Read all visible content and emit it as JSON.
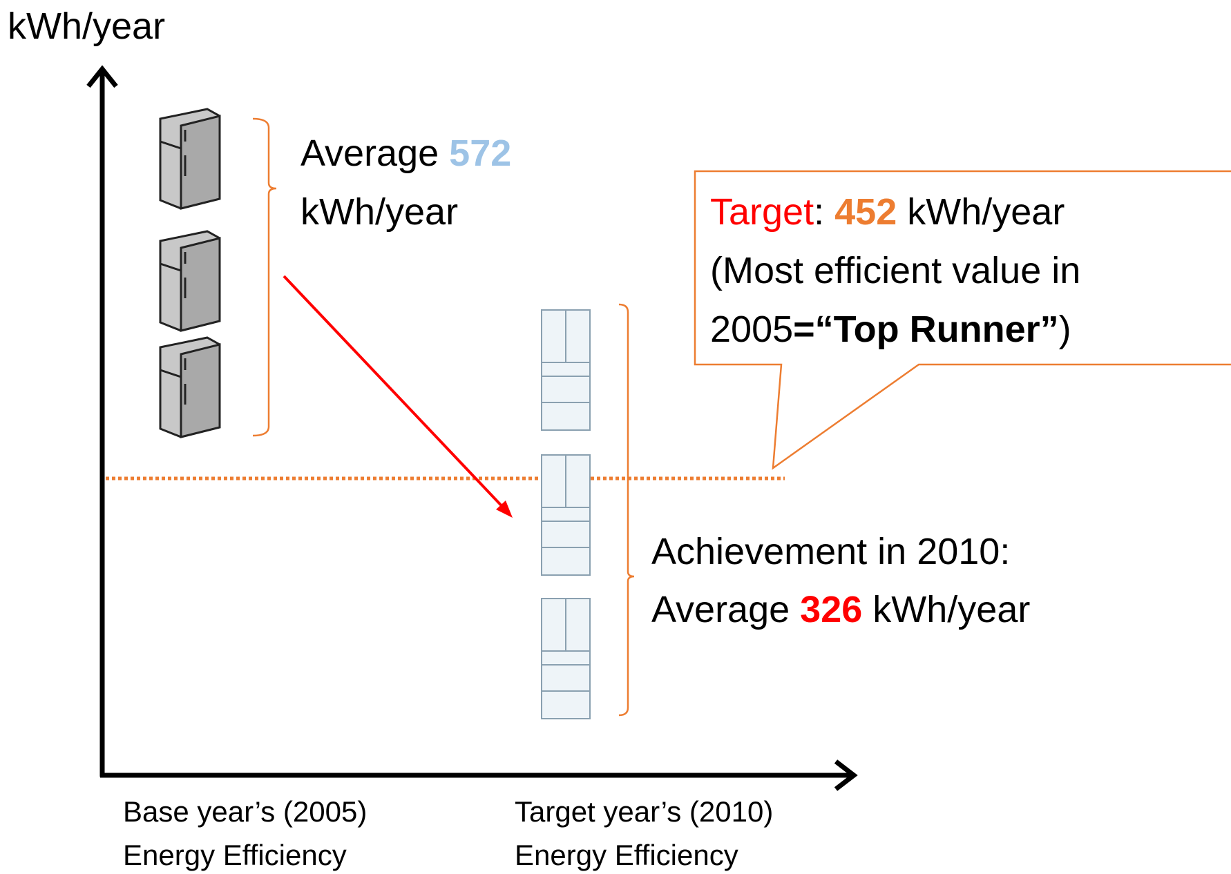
{
  "y_axis_label": "kWh/year",
  "base_group": {
    "prefix": "Average",
    "value": "572",
    "unit": "kWh/year"
  },
  "target_callout": {
    "label": "Target",
    "separator": ":",
    "value": "452",
    "unit": "kWh/year",
    "note_line1": "(Most efficient value in",
    "note_year": "2005",
    "note_bold": "=“Top Runner”",
    "note_close": ")"
  },
  "achievement": {
    "line1": "Achievement in 2010:",
    "prefix": "Average",
    "value": "326",
    "unit": "kWh/year"
  },
  "x_labels": [
    {
      "line1": "Base year’s (2005)",
      "line2": "Energy Efficiency"
    },
    {
      "line1": "Target year’s (2010)",
      "line2": "Energy Efficiency"
    }
  ]
}
